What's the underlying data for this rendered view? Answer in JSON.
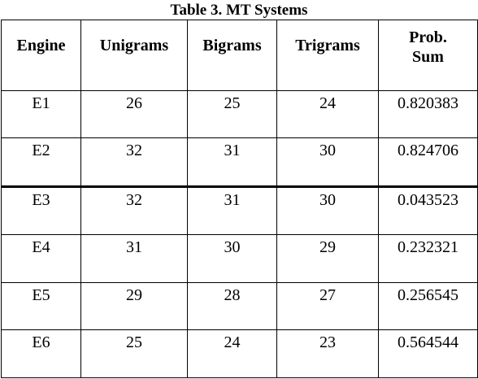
{
  "caption": "Table 3. MT Systems",
  "table": {
    "headers": [
      "Engine",
      "Unigrams",
      "Bigrams",
      "Trigrams",
      "Prob. Sum"
    ],
    "header_lines": {
      "prob_sum_line1": "Prob.",
      "prob_sum_line2": "Sum"
    },
    "rows": [
      {
        "engine": "E1",
        "unigrams": "26",
        "bigrams": "25",
        "trigrams": "24",
        "prob_sum": "0.820383"
      },
      {
        "engine": "E2",
        "unigrams": "32",
        "bigrams": "31",
        "trigrams": "30",
        "prob_sum": "0.824706"
      },
      {
        "engine": "E3",
        "unigrams": "32",
        "bigrams": "31",
        "trigrams": "30",
        "prob_sum": "0.043523"
      },
      {
        "engine": "E4",
        "unigrams": "31",
        "bigrams": "30",
        "trigrams": "29",
        "prob_sum": "0.232321"
      },
      {
        "engine": "E5",
        "unigrams": "29",
        "bigrams": "28",
        "trigrams": "27",
        "prob_sum": "0.256545"
      },
      {
        "engine": "E6",
        "unigrams": "25",
        "bigrams": "24",
        "trigrams": "23",
        "prob_sum": "0.564544"
      }
    ]
  }
}
